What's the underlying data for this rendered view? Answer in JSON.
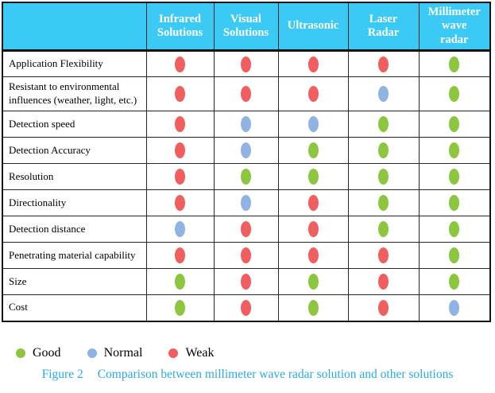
{
  "table": {
    "columns": [
      "",
      "Infrared\nSolutions",
      "Visual\nSolutions",
      "Ultrasonic",
      "Laser\nRadar",
      "Millimeter\nwave\nradar"
    ],
    "rows": [
      {
        "label": "Application Flexibility",
        "ratings": [
          "weak",
          "weak",
          "weak",
          "weak",
          "good"
        ]
      },
      {
        "label": "Resistant to environmental\ninfluences (weather, light, etc.)",
        "ratings": [
          "weak",
          "weak",
          "weak",
          "normal",
          "good"
        ]
      },
      {
        "label": "Detection speed",
        "ratings": [
          "weak",
          "normal",
          "normal",
          "good",
          "good"
        ]
      },
      {
        "label": "Detection Accuracy",
        "ratings": [
          "weak",
          "normal",
          "good",
          "good",
          "good"
        ]
      },
      {
        "label": "Resolution",
        "ratings": [
          "weak",
          "good",
          "good",
          "good",
          "good"
        ]
      },
      {
        "label": "Directionality",
        "ratings": [
          "weak",
          "normal",
          "weak",
          "good",
          "good"
        ]
      },
      {
        "label": "Detection distance",
        "ratings": [
          "normal",
          "weak",
          "weak",
          "good",
          "good"
        ]
      },
      {
        "label": "Penetrating material capability",
        "ratings": [
          "weak",
          "weak",
          "weak",
          "weak",
          "good"
        ]
      },
      {
        "label": "Size",
        "ratings": [
          "good",
          "weak",
          "good",
          "weak",
          "good"
        ]
      },
      {
        "label": "Cost",
        "ratings": [
          "good",
          "weak",
          "good",
          "weak",
          "normal"
        ]
      }
    ]
  },
  "legend": [
    {
      "key": "good",
      "label": "Good"
    },
    {
      "key": "normal",
      "label": "Normal"
    },
    {
      "key": "weak",
      "label": "Weak"
    }
  ],
  "caption": {
    "figure_label": "Figure 2",
    "text": "Comparison between millimeter wave radar solution and other solutions"
  },
  "colors": {
    "good": "#8CC63F",
    "normal": "#8FB4E3",
    "weak": "#F15E5F",
    "header_bg": "#3BCAF5",
    "caption_text": "#29ABE2"
  }
}
